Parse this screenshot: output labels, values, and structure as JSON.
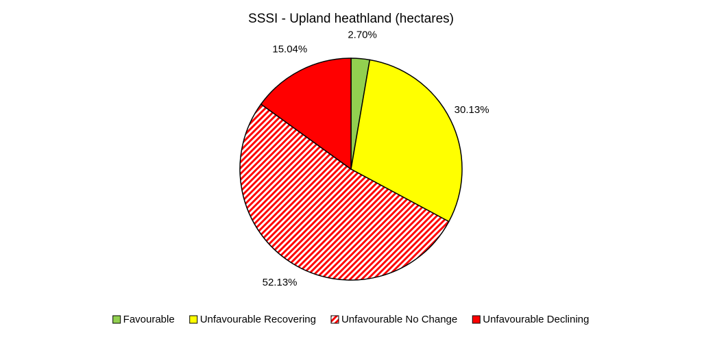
{
  "chart_data": {
    "type": "pie",
    "title": "SSSI - Upland heathland (hectares)",
    "categories": [
      "Favourable",
      "Unfavourable Recovering",
      "Unfavourable No Change",
      "Unfavourable Declining"
    ],
    "values": [
      2.7,
      30.13,
      52.13,
      15.04
    ],
    "value_labels": [
      "2.70%",
      "30.13%",
      "52.13%",
      "15.04%"
    ],
    "colors": [
      "#92d050",
      "#ffff00",
      "#ff0000",
      "#ff0000"
    ],
    "hatched": [
      false,
      false,
      true,
      false
    ],
    "legend": "bottom"
  }
}
